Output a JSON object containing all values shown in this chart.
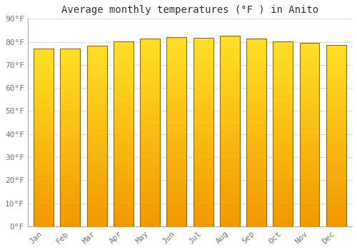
{
  "title": "Average monthly temperatures (°F ) in Anito",
  "months": [
    "Jan",
    "Feb",
    "Mar",
    "Apr",
    "May",
    "Jun",
    "Jul",
    "Aug",
    "Sep",
    "Oct",
    "Nov",
    "Dec"
  ],
  "values": [
    77.0,
    77.0,
    78.2,
    80.2,
    81.4,
    82.0,
    81.6,
    82.6,
    81.5,
    80.2,
    79.5,
    78.6
  ],
  "bar_color_light": "#FFD740",
  "bar_color_mid": "#FFA500",
  "bar_color_dark": "#F59300",
  "bar_edge_color": "#9B6A00",
  "background_color": "#FFFFFF",
  "grid_color": "#DDDDDD",
  "text_color": "#777777",
  "ylim": [
    0,
    90
  ],
  "ytick_step": 10,
  "title_fontsize": 10,
  "tick_fontsize": 8
}
